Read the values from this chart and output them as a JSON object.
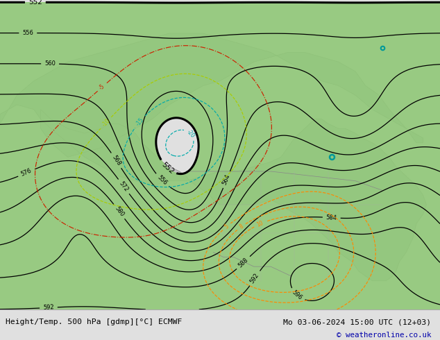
{
  "title_left": "Height/Temp. 500 hPa [gdmp][°C] ECMWF",
  "title_right": "Mo 03-06-2024 15:00 UTC (12+03)",
  "copyright": "© weatheronline.co.uk",
  "green_fill": "#90c878",
  "figsize": [
    6.34,
    4.9
  ],
  "dpi": 100
}
